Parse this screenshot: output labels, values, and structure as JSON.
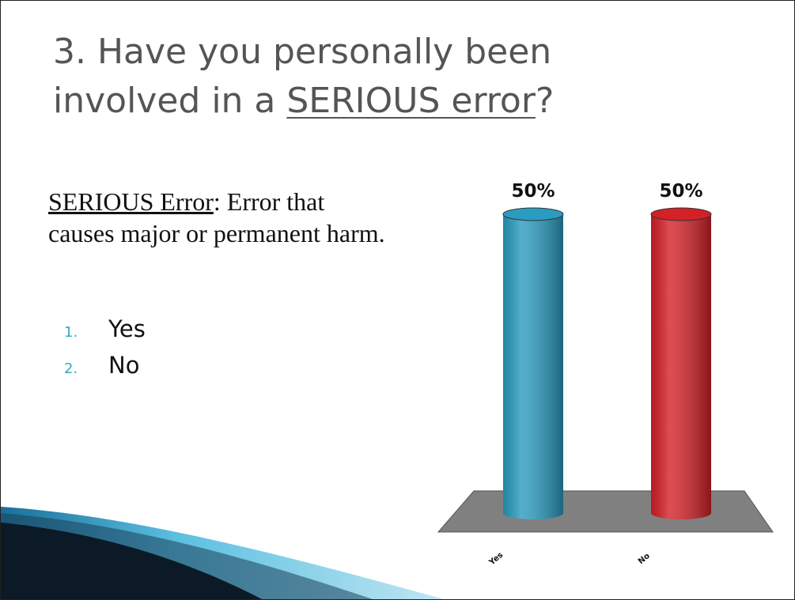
{
  "title": {
    "line1": "3.  Have you personally been",
    "line2_start": "involved in a ",
    "line2_underlined": "SERIOUS error",
    "line2_end": "?"
  },
  "definition": {
    "term": "SERIOUS Error",
    "line1_rest": ": Error that",
    "line2": "causes major or permanent harm."
  },
  "options": [
    {
      "number": "1.",
      "label": "Yes"
    },
    {
      "number": "2.",
      "label": "No"
    }
  ],
  "chart_data": {
    "type": "bar",
    "categories": [
      "Yes",
      "No"
    ],
    "values": [
      50,
      50
    ],
    "value_labels": [
      "50%",
      "50%"
    ],
    "colors": [
      "#2a9cc0",
      "#d42027"
    ],
    "floor_color": "#808080"
  }
}
